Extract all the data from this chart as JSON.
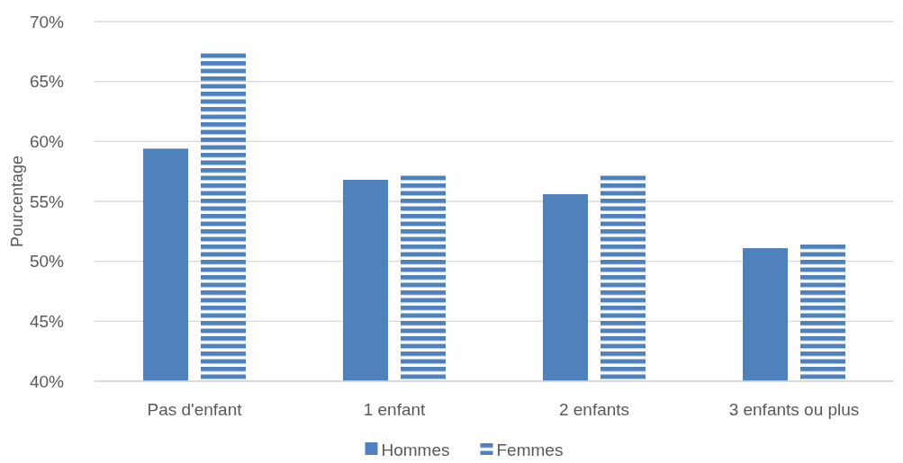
{
  "chart_data": {
    "type": "bar",
    "ylabel": "Pourcentage",
    "categories": [
      "Pas d'enfant",
      "1 enfant",
      "2 enfants",
      "3 enfants ou plus"
    ],
    "series": [
      {
        "name": "Hommes",
        "color": "#4f81bd",
        "values": [
          59.4,
          56.8,
          55.6,
          51.1
        ]
      },
      {
        "name": "Femmes",
        "color": "#4f81bd",
        "values": [
          67.4,
          57.2,
          57.2,
          51.4
        ]
      }
    ],
    "ylim": [
      40,
      70
    ],
    "yticks": [
      {
        "value": 40,
        "label": "40%"
      },
      {
        "value": 45,
        "label": "45%"
      },
      {
        "value": 50,
        "label": "50%"
      },
      {
        "value": 55,
        "label": "55%"
      },
      {
        "value": 60,
        "label": "60%"
      },
      {
        "value": 65,
        "label": "65%"
      },
      {
        "value": 70,
        "label": "70%"
      }
    ],
    "grid": "y",
    "legend": "bottom"
  }
}
